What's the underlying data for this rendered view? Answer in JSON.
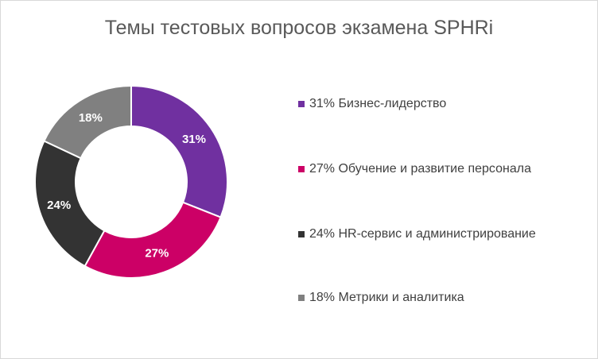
{
  "chart_data": {
    "type": "pie",
    "variant": "donut",
    "title": "Темы тестовых вопросов экзамена SPHRi",
    "legend_position": "right",
    "slices": [
      {
        "label": "31% Бизнес-лидерство",
        "value": 31,
        "data_label": "31%",
        "color": "#7030a0"
      },
      {
        "label": "27% Обучение и развитие персонала",
        "value": 27,
        "data_label": "27%",
        "color": "#cc0066"
      },
      {
        "label": "24% HR-сервис и администрирование",
        "value": 24,
        "data_label": "24%",
        "color": "#333333"
      },
      {
        "label": "18% Метрики и аналитика",
        "value": 18,
        "data_label": "18%",
        "color": "#808080"
      }
    ]
  }
}
